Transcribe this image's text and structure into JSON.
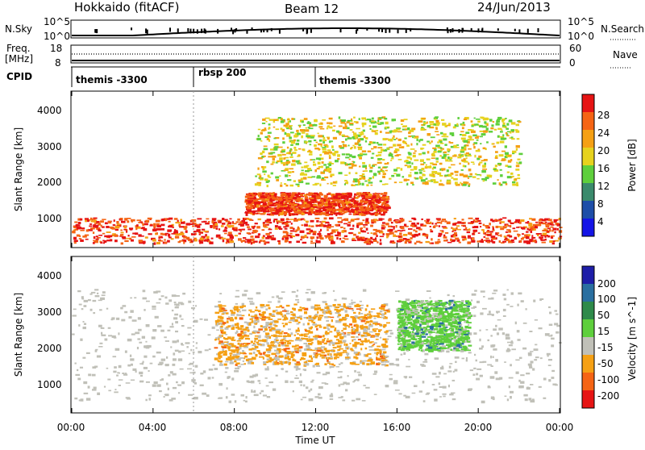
{
  "header": {
    "station": "Hokkaido (fitACF)",
    "beam": "Beam 12",
    "date": "24/Jun/2013"
  },
  "strips": {
    "nsky": {
      "label": "N.Sky",
      "right_label": "N.Search",
      "y_top_tick": "10^5",
      "y_bottom_tick": "10^0",
      "right_top_tick": "10^5",
      "right_bottom_tick": "10^0"
    },
    "freq": {
      "label_line1": "Freq.",
      "label_line2": "[MHz]",
      "right_label": "Nave",
      "left_top_tick": "18",
      "left_bottom_tick": "8",
      "right_top_tick": "60",
      "right_bottom_tick": "0"
    },
    "cpid": {
      "label": "CPID",
      "segments": [
        {
          "name": "themis -3300",
          "start_hour": 0
        },
        {
          "name": "rbsp 200",
          "start_hour": 6
        },
        {
          "name": "themis -3300",
          "start_hour": 12
        }
      ]
    }
  },
  "panels": {
    "power": {
      "ylabel": "Slant Range [km]",
      "yticks": [
        "1000",
        "2000",
        "3000",
        "4000"
      ],
      "colorbar_label": "Power [dB]",
      "colorbar_ticks": [
        "4",
        "8",
        "12",
        "16",
        "20",
        "24",
        "28"
      ],
      "colorbar_colors": [
        "#1414e6",
        "#1e4ea8",
        "#3a8a6c",
        "#5ecf3c",
        "#e6d21e",
        "#f5a014",
        "#f56414",
        "#e61414"
      ]
    },
    "velocity": {
      "ylabel": "Slant Range [km]",
      "yticks": [
        "1000",
        "2000",
        "3000",
        "4000"
      ],
      "colorbar_label": "Velocity [m s^-1]",
      "colorbar_ticks": [
        "200",
        "100",
        "50",
        "15",
        "-15",
        "-50",
        "-100",
        "-200"
      ],
      "colorbar_colors": [
        "#1e1ea8",
        "#2a6fa0",
        "#2e8a4a",
        "#5ecf3c",
        "#c0c0b8",
        "#f5a014",
        "#f56414",
        "#e61414"
      ]
    }
  },
  "x_axis": {
    "label": "Time UT",
    "ticks": [
      "00:00",
      "04:00",
      "08:00",
      "12:00",
      "16:00",
      "20:00",
      "00:00"
    ]
  },
  "chart_data": {
    "type": "heatmap",
    "title": "Hokkaido (fitACF) Beam 12 24/Jun/2013",
    "xlabel": "Time UT",
    "ylabel": "Slant Range [km]",
    "xlim_hours": [
      0,
      24
    ],
    "ylim_km": [
      180,
      4500
    ],
    "panels": [
      {
        "name": "Power",
        "units": "dB",
        "color_range": [
          0,
          32
        ],
        "features": [
          {
            "desc": "near-range band",
            "t_start": 0.0,
            "t_end": 24.0,
            "range_km": [
              300,
              1000
            ],
            "value_db": 28
          },
          {
            "desc": "main arc",
            "t_start": 8.5,
            "t_end": 15.5,
            "range_km": [
              1100,
              1700
            ],
            "value_db": 28
          },
          {
            "desc": "upper band",
            "t_start": 9.0,
            "t_end": 22.0,
            "range_km": [
              1900,
              3800
            ],
            "value_db": 18
          }
        ]
      },
      {
        "name": "Velocity",
        "units": "m s^-1",
        "color_range": [
          -230,
          230
        ],
        "features": [
          {
            "desc": "ground scatter",
            "t_start": 0.0,
            "t_end": 24.0,
            "range_km": [
              500,
              3600
            ],
            "value_ms": 0
          },
          {
            "desc": "toward radar patch",
            "t_start": 16.0,
            "t_end": 19.5,
            "range_km": [
              1900,
              3300
            ],
            "value_ms": 50
          },
          {
            "desc": "away patch",
            "t_start": 7.0,
            "t_end": 15.5,
            "range_km": [
              1500,
              3200
            ],
            "value_ms": -50
          }
        ]
      }
    ]
  }
}
